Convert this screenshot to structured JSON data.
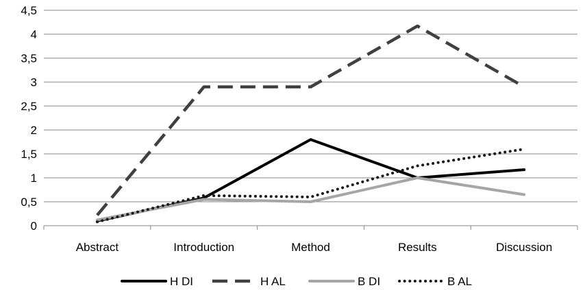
{
  "chart_data": {
    "type": "line",
    "title": "",
    "xlabel": "",
    "ylabel": "",
    "categories": [
      "Abstract",
      "Introduction",
      "Method",
      "Results",
      "Discussion"
    ],
    "ylim": [
      0,
      4.5
    ],
    "yticks": [
      0,
      0.5,
      1,
      1.5,
      2,
      2.5,
      3,
      3.5,
      4,
      4.5
    ],
    "ytick_labels": [
      "0",
      "0,5",
      "1",
      "1,5",
      "2",
      "2,5",
      "3",
      "3,5",
      "4",
      "4,5"
    ],
    "grid": "horizontal",
    "legend_position": "bottom",
    "series": [
      {
        "name": "H DI",
        "values": [
          0.1,
          0.58,
          1.8,
          1.0,
          1.17
        ],
        "color": "#000000",
        "style": "solid"
      },
      {
        "name": "H AL",
        "values": [
          0.22,
          2.9,
          2.9,
          4.17,
          2.9
        ],
        "color": "#404040",
        "style": "long-dash"
      },
      {
        "name": "B DI",
        "values": [
          0.12,
          0.55,
          0.5,
          1.0,
          0.65
        ],
        "color": "#a6a6a6",
        "style": "solid"
      },
      {
        "name": "B AL",
        "values": [
          0.08,
          0.63,
          0.6,
          1.25,
          1.6
        ],
        "color": "#1a1a1a",
        "style": "dotted"
      }
    ]
  }
}
